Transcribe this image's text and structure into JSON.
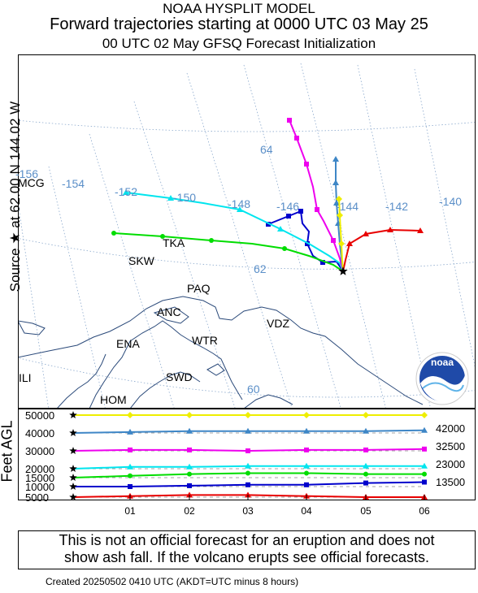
{
  "header": {
    "line1": "NOAA HYSPLIT MODEL",
    "line2": "Forward trajectories starting at 0000 UTC 03 May 25",
    "line3": "00 UTC 02 May     GFSQ  Forecast Initialization"
  },
  "side_label": "Source ★ at   62.00 N  144.02 W",
  "feet_label": "Feet AGL",
  "message": {
    "line1": "This is not an official forecast for an eruption and does not",
    "line2": "show ash fall. If the volcano erupts see official forecasts."
  },
  "footer": "Created 20250502 0410 UTC      (AKDT=UTC minus 8 hours)",
  "logo_text": "noaa",
  "map": {
    "lon_labels": [
      "-156",
      "-154",
      "-152",
      "-150",
      "-148",
      "-146",
      "-144",
      "-142",
      "-140"
    ],
    "lat_labels": [
      "64",
      "62",
      "60"
    ],
    "places": [
      "MCG",
      "TKA",
      "SKW",
      "PAQ",
      "ANC",
      "VDZ",
      "ENA",
      "WTR",
      "SWD",
      "ILI",
      "HOM"
    ]
  },
  "colors": {
    "red": "#e80000",
    "blue": "#0000cc",
    "green": "#00dd00",
    "cyan": "#00e5ee",
    "magenta": "#ee00ee",
    "steelblue": "#3e86c6",
    "yellow": "#eeee00",
    "grid_label": "#5b8fc8",
    "coast": "#2b4a7a"
  },
  "chart_data": {
    "type": "line",
    "title": "Forward trajectories starting at 0000 UTC 03 May 25",
    "source": {
      "lat": 62.0,
      "lon": -144.02
    },
    "x_ticks": [
      "01",
      "02",
      "03",
      "04",
      "05",
      "06"
    ],
    "y_ticks": [
      "50000",
      "40000",
      "30000",
      "20000",
      "15000",
      "10000",
      "5000"
    ],
    "ylabel": "Feet AGL",
    "right_labels": [
      "42000",
      "32500",
      "23000",
      "13500"
    ],
    "series": [
      {
        "color": "yellow",
        "marker": "diamond",
        "start_ft": 50000,
        "heights_ft": [
          50000,
          50000,
          50000,
          50000,
          50000,
          50000,
          50000
        ]
      },
      {
        "color": "steelblue",
        "marker": "triangle",
        "start_ft": 40000,
        "heights_ft": [
          40000,
          40500,
          41000,
          41000,
          41000,
          41000,
          41500
        ]
      },
      {
        "color": "magenta",
        "marker": "square",
        "start_ft": 30000,
        "heights_ft": [
          30000,
          30500,
          30500,
          30000,
          30500,
          30500,
          31000
        ]
      },
      {
        "color": "cyan",
        "marker": "triangle",
        "start_ft": 20000,
        "heights_ft": [
          20000,
          21000,
          21000,
          21500,
          21500,
          21500,
          21500
        ]
      },
      {
        "color": "green",
        "marker": "circle",
        "start_ft": 15000,
        "heights_ft": [
          15000,
          16000,
          17000,
          17500,
          17500,
          17000,
          17000
        ]
      },
      {
        "color": "blue",
        "marker": "square",
        "start_ft": 10000,
        "heights_ft": [
          10000,
          10000,
          10500,
          11000,
          11000,
          12000,
          12500
        ]
      },
      {
        "color": "red",
        "marker": "triangle",
        "start_ft": 5000,
        "heights_ft": [
          5000,
          5500,
          6000,
          6000,
          5500,
          4500,
          5000
        ]
      }
    ]
  }
}
